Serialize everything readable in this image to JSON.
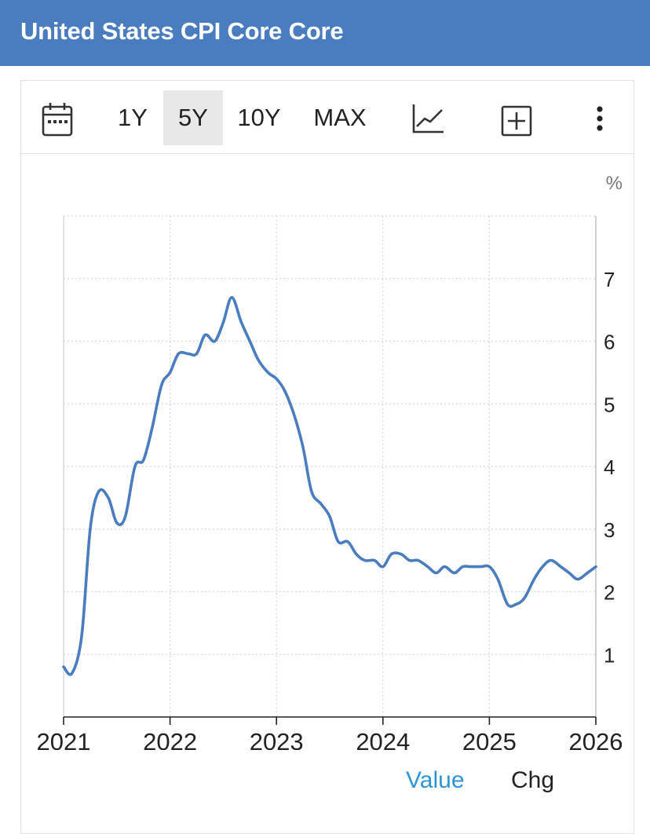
{
  "header": {
    "title": "United States CPI Core Core"
  },
  "toolbar": {
    "ranges": [
      "1Y",
      "5Y",
      "10Y",
      "MAX"
    ],
    "active_range": "5Y",
    "icons": [
      "calendar-icon",
      "line-chart-icon",
      "add-box-icon",
      "more-vertical-icon"
    ]
  },
  "tabs": {
    "value_label": "Value",
    "chg_label": "Chg",
    "active": "Value"
  },
  "colors": {
    "header": "#4a7cc0",
    "line": "#4a7cc0",
    "active_tab": "#2e94d8"
  },
  "chart_data": {
    "type": "line",
    "title": "",
    "unit_label": "%",
    "xlabel": "",
    "ylabel": "",
    "xlim": [
      2021,
      2026
    ],
    "ylim": [
      0,
      8
    ],
    "x_ticks": [
      "2021",
      "2022",
      "2023",
      "2024",
      "2025",
      "2026"
    ],
    "y_ticks": [
      "1",
      "2",
      "3",
      "4",
      "5",
      "6",
      "7"
    ],
    "grid": true,
    "legend": "none",
    "series": [
      {
        "name": "",
        "points": [
          [
            2021.0,
            0.8
          ],
          [
            2021.08,
            0.7
          ],
          [
            2021.17,
            1.3
          ],
          [
            2021.25,
            3.0
          ],
          [
            2021.33,
            3.6
          ],
          [
            2021.42,
            3.5
          ],
          [
            2021.5,
            3.1
          ],
          [
            2021.58,
            3.2
          ],
          [
            2021.67,
            4.0
          ],
          [
            2021.75,
            4.1
          ],
          [
            2021.83,
            4.6
          ],
          [
            2021.92,
            5.3
          ],
          [
            2022.0,
            5.5
          ],
          [
            2022.08,
            5.8
          ],
          [
            2022.17,
            5.8
          ],
          [
            2022.25,
            5.8
          ],
          [
            2022.33,
            6.1
          ],
          [
            2022.42,
            6.0
          ],
          [
            2022.5,
            6.3
          ],
          [
            2022.58,
            6.7
          ],
          [
            2022.67,
            6.3
          ],
          [
            2022.75,
            6.0
          ],
          [
            2022.83,
            5.7
          ],
          [
            2022.92,
            5.5
          ],
          [
            2023.0,
            5.4
          ],
          [
            2023.08,
            5.2
          ],
          [
            2023.17,
            4.8
          ],
          [
            2023.25,
            4.3
          ],
          [
            2023.33,
            3.6
          ],
          [
            2023.42,
            3.4
          ],
          [
            2023.5,
            3.2
          ],
          [
            2023.58,
            2.8
          ],
          [
            2023.67,
            2.8
          ],
          [
            2023.75,
            2.6
          ],
          [
            2023.83,
            2.5
          ],
          [
            2023.92,
            2.5
          ],
          [
            2024.0,
            2.4
          ],
          [
            2024.08,
            2.6
          ],
          [
            2024.17,
            2.6
          ],
          [
            2024.25,
            2.5
          ],
          [
            2024.33,
            2.5
          ],
          [
            2024.42,
            2.4
          ],
          [
            2024.5,
            2.3
          ],
          [
            2024.58,
            2.4
          ],
          [
            2024.67,
            2.3
          ],
          [
            2024.75,
            2.4
          ],
          [
            2024.83,
            2.4
          ],
          [
            2024.92,
            2.4
          ],
          [
            2025.0,
            2.4
          ],
          [
            2025.08,
            2.2
          ],
          [
            2025.17,
            1.8
          ],
          [
            2025.25,
            1.8
          ],
          [
            2025.33,
            1.9
          ],
          [
            2025.42,
            2.2
          ],
          [
            2025.5,
            2.4
          ],
          [
            2025.58,
            2.5
          ],
          [
            2025.67,
            2.4
          ],
          [
            2025.75,
            2.3
          ],
          [
            2025.83,
            2.2
          ],
          [
            2025.92,
            2.3
          ],
          [
            2026.0,
            2.4
          ]
        ]
      }
    ]
  }
}
